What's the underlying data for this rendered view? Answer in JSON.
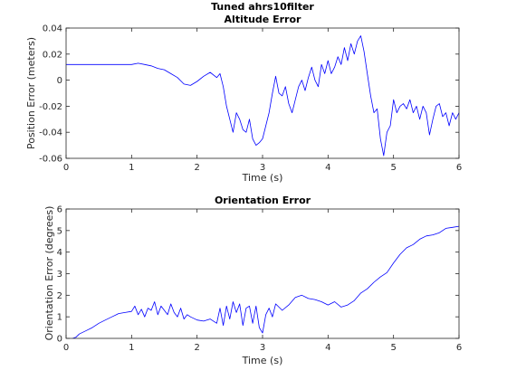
{
  "colors": {
    "line": "#0000ff",
    "axes": "#262626",
    "background": "#ffffff"
  },
  "chart_data": [
    {
      "type": "line",
      "title": [
        "Tuned ahrs10filter",
        "Altitude Error"
      ],
      "xlabel": "Time (s)",
      "ylabel": "Position Error (meters)",
      "xlim": [
        0,
        6
      ],
      "ylim": [
        -0.06,
        0.04
      ],
      "xticks": [
        0,
        1,
        2,
        3,
        4,
        5,
        6
      ],
      "yticks": [
        -0.06,
        -0.04,
        -0.02,
        0,
        0.02,
        0.04
      ],
      "xtick_labels": [
        "0",
        "1",
        "2",
        "3",
        "4",
        "5",
        "6"
      ],
      "ytick_labels": [
        "-0.06",
        "-0.04",
        "-0.02",
        "0",
        "0.02",
        "0.04"
      ],
      "grid": false,
      "series": [
        {
          "x": [
            0,
            0.2,
            0.4,
            0.6,
            0.8,
            1.0,
            1.1,
            1.2,
            1.3,
            1.4,
            1.5,
            1.6,
            1.7,
            1.8,
            1.9,
            2.0,
            2.1,
            2.2,
            2.3,
            2.35,
            2.4,
            2.45,
            2.5,
            2.55,
            2.6,
            2.65,
            2.7,
            2.75,
            2.8,
            2.85,
            2.9,
            2.95,
            3.0,
            3.05,
            3.1,
            3.15,
            3.2,
            3.25,
            3.3,
            3.35,
            3.4,
            3.45,
            3.5,
            3.55,
            3.6,
            3.65,
            3.7,
            3.75,
            3.8,
            3.85,
            3.9,
            3.95,
            4.0,
            4.05,
            4.1,
            4.15,
            4.2,
            4.25,
            4.3,
            4.35,
            4.4,
            4.45,
            4.5,
            4.55,
            4.6,
            4.65,
            4.7,
            4.75,
            4.8,
            4.85,
            4.9,
            4.95,
            5.0,
            5.05,
            5.1,
            5.15,
            5.2,
            5.25,
            5.3,
            5.35,
            5.4,
            5.45,
            5.5,
            5.55,
            5.6,
            5.65,
            5.7,
            5.75,
            5.8,
            5.85,
            5.9,
            5.95,
            6.0
          ],
          "y": [
            0.012,
            0.012,
            0.012,
            0.012,
            0.012,
            0.012,
            0.013,
            0.012,
            0.011,
            0.009,
            0.008,
            0.005,
            0.002,
            -0.003,
            -0.004,
            -0.001,
            0.003,
            0.006,
            0.002,
            0.005,
            -0.005,
            -0.02,
            -0.03,
            -0.04,
            -0.025,
            -0.03,
            -0.038,
            -0.04,
            -0.03,
            -0.045,
            -0.05,
            -0.048,
            -0.045,
            -0.035,
            -0.025,
            -0.01,
            0.003,
            -0.01,
            -0.012,
            -0.005,
            -0.018,
            -0.025,
            -0.015,
            -0.005,
            0.0,
            -0.008,
            0.002,
            0.01,
            0.0,
            -0.005,
            0.012,
            0.005,
            0.015,
            0.005,
            0.01,
            0.018,
            0.012,
            0.025,
            0.015,
            0.028,
            0.02,
            0.03,
            0.034,
            0.022,
            0.005,
            -0.012,
            -0.025,
            -0.022,
            -0.045,
            -0.058,
            -0.04,
            -0.035,
            -0.015,
            -0.025,
            -0.02,
            -0.018,
            -0.022,
            -0.015,
            -0.025,
            -0.02,
            -0.03,
            -0.02,
            -0.025,
            -0.042,
            -0.03,
            -0.02,
            -0.018,
            -0.028,
            -0.025,
            -0.035,
            -0.025,
            -0.03,
            -0.025
          ]
        }
      ]
    },
    {
      "type": "line",
      "title": [
        "Orientation Error"
      ],
      "xlabel": "Time (s)",
      "ylabel": "Orientation Error (degrees)",
      "xlim": [
        0,
        6
      ],
      "ylim": [
        0,
        6
      ],
      "xticks": [
        0,
        1,
        2,
        3,
        4,
        5,
        6
      ],
      "yticks": [
        0,
        1,
        2,
        3,
        4,
        5,
        6
      ],
      "xtick_labels": [
        "0",
        "1",
        "2",
        "3",
        "4",
        "5",
        "6"
      ],
      "ytick_labels": [
        "0",
        "1",
        "2",
        "3",
        "4",
        "5",
        "6"
      ],
      "grid": false,
      "series": [
        {
          "x": [
            0.1,
            0.15,
            0.2,
            0.3,
            0.4,
            0.5,
            0.6,
            0.7,
            0.8,
            0.9,
            1.0,
            1.05,
            1.1,
            1.15,
            1.2,
            1.25,
            1.3,
            1.35,
            1.4,
            1.45,
            1.5,
            1.55,
            1.6,
            1.65,
            1.7,
            1.75,
            1.8,
            1.85,
            1.9,
            2.0,
            2.1,
            2.2,
            2.3,
            2.35,
            2.4,
            2.45,
            2.5,
            2.55,
            2.6,
            2.65,
            2.7,
            2.75,
            2.8,
            2.85,
            2.9,
            2.95,
            3.0,
            3.05,
            3.1,
            3.15,
            3.2,
            3.3,
            3.4,
            3.5,
            3.6,
            3.7,
            3.8,
            3.9,
            4.0,
            4.1,
            4.2,
            4.3,
            4.4,
            4.5,
            4.6,
            4.7,
            4.8,
            4.9,
            5.0,
            5.1,
            5.2,
            5.3,
            5.4,
            5.5,
            5.6,
            5.7,
            5.8,
            5.9,
            6.0
          ],
          "y": [
            0.0,
            0.05,
            0.2,
            0.35,
            0.5,
            0.7,
            0.85,
            1.0,
            1.15,
            1.2,
            1.25,
            1.5,
            1.1,
            1.35,
            1.0,
            1.4,
            1.3,
            1.7,
            1.1,
            1.5,
            1.3,
            1.1,
            1.6,
            1.2,
            1.0,
            1.4,
            0.9,
            1.1,
            1.0,
            0.85,
            0.8,
            0.9,
            0.7,
            1.4,
            0.6,
            1.5,
            0.9,
            1.7,
            1.2,
            1.6,
            0.6,
            1.4,
            1.5,
            0.7,
            1.5,
            0.5,
            0.25,
            1.1,
            1.4,
            1.0,
            1.6,
            1.3,
            1.55,
            1.9,
            2.0,
            1.85,
            1.8,
            1.7,
            1.55,
            1.7,
            1.45,
            1.55,
            1.75,
            2.1,
            2.3,
            2.6,
            2.85,
            3.05,
            3.5,
            3.9,
            4.2,
            4.35,
            4.6,
            4.75,
            4.8,
            4.9,
            5.1,
            5.15,
            5.2
          ]
        }
      ]
    }
  ]
}
